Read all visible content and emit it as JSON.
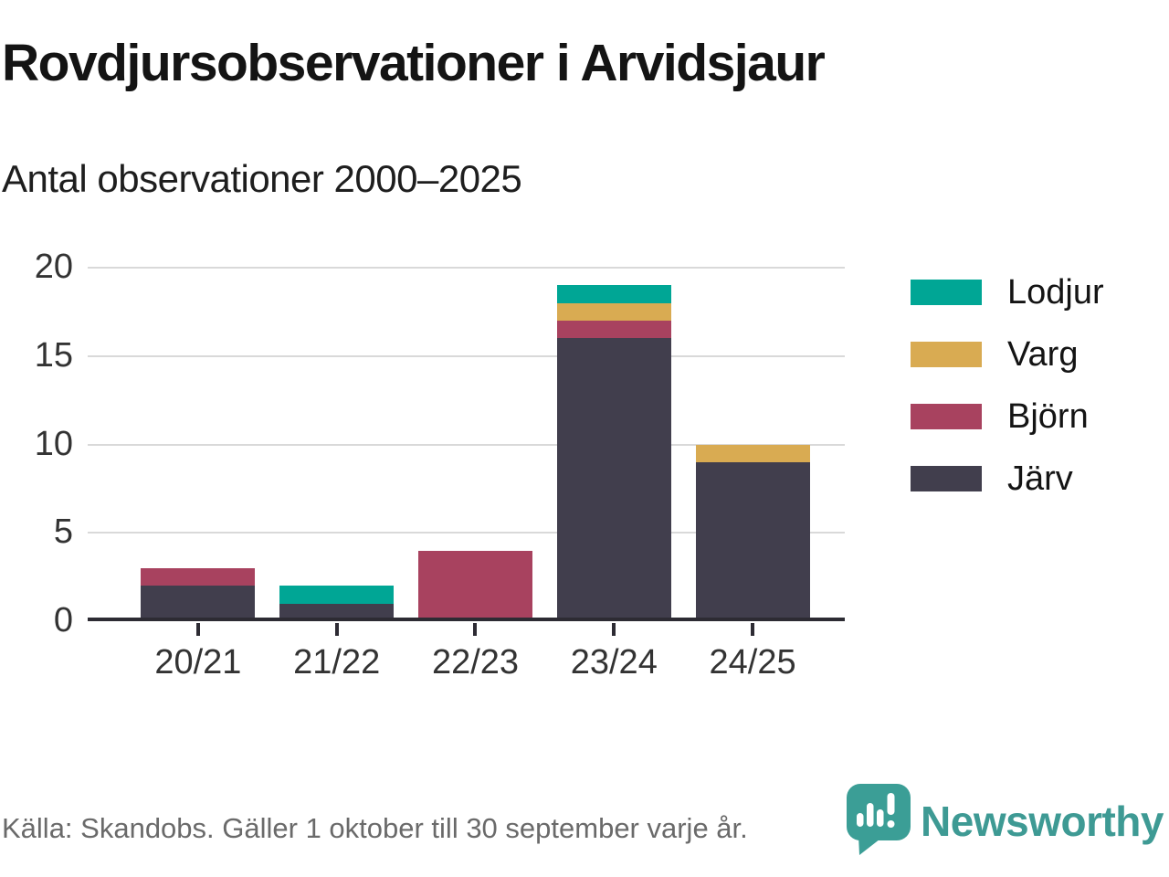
{
  "header": {
    "title": "Rovdjursobservationer i Arvidsjaur",
    "subtitle": "Antal observationer 2000–2025"
  },
  "chart_data": {
    "type": "bar",
    "stacked": true,
    "title": "Rovdjursobservationer i Arvidsjaur",
    "subtitle": "Antal observationer 2000–2025",
    "categories": [
      "20/21",
      "21/22",
      "22/23",
      "23/24",
      "24/25"
    ],
    "series": [
      {
        "name": "Lodjur",
        "color": "#00a695",
        "values": [
          0,
          1,
          0,
          1,
          0
        ]
      },
      {
        "name": "Varg",
        "color": "#d9ab52",
        "values": [
          0,
          0,
          0,
          1,
          1
        ]
      },
      {
        "name": "Björn",
        "color": "#a8425f",
        "values": [
          1,
          0,
          4,
          1,
          0
        ]
      },
      {
        "name": "Järv",
        "color": "#413e4d",
        "values": [
          2,
          1,
          0,
          16,
          9
        ]
      }
    ],
    "stack_order_bottom_to_top": [
      "Järv",
      "Björn",
      "Varg",
      "Lodjur"
    ],
    "totals": [
      3,
      2,
      4,
      19,
      10
    ],
    "xlabel": "",
    "ylabel": "",
    "y_ticks": [
      0,
      5,
      10,
      15,
      20
    ],
    "ylim": [
      0,
      20
    ],
    "grid": "horizontal-only",
    "legend_position": "right"
  },
  "colors": {
    "gridline": "#d9d9d9",
    "axis_line": "#2d2b33",
    "axis_text": "#333333",
    "brand_teal": "#3e9a94"
  },
  "footer": {
    "source": "Källa: Skandobs. Gäller 1 oktober till 30 september varje år.",
    "brand": "Newsworthy"
  }
}
